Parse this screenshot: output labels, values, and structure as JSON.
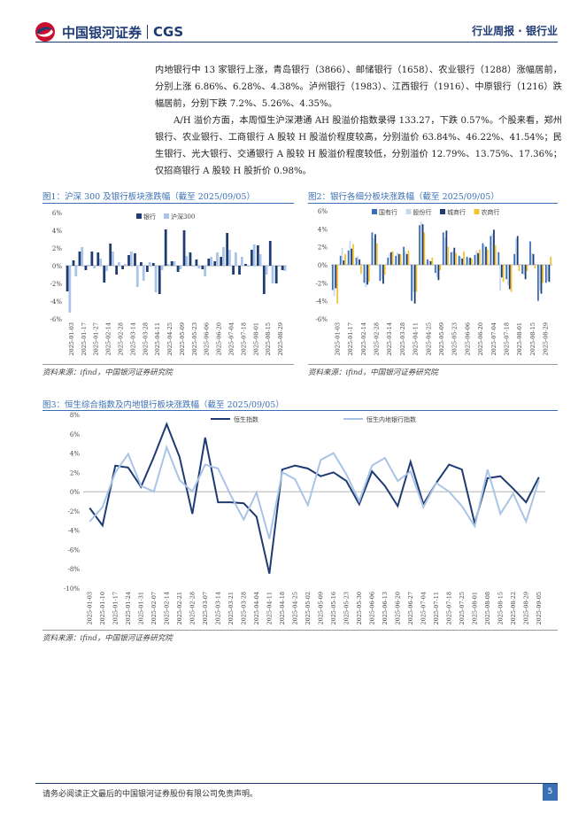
{
  "header": {
    "logo_text": "中国银河证券",
    "logo_cgs": "CGS",
    "right": "行业周报 · 银行业"
  },
  "body": {
    "para1": "内地银行中 13 家银行上涨，青岛银行（3866）、邮储银行（1658）、农业银行（1288）涨幅居前，分别上涨 6.86%、6.28%、4.38%。泸州银行（1983）、江西银行（1916）、中原银行（1216）跌幅居前，分别下跌 7.2%、5.26%、4.35%。",
    "para2": "A/H 溢价方面，本周恒生沪深港通 AH 股溢价指数录得 133.27，下跌 0.57%。个股来看，郑州银行、农业银行、工商银行 A 股较 H 股溢价程度较高，分别溢价 63.84%、46.22%、41.54%；民生银行、光大银行、交通银行 A 股较 H 股溢价程度较低，分别溢价 12.79%、13.75%、17.36%；仅招商银行 A 股较 H 股折价 0.98%。"
  },
  "figures": {
    "fig1_title": "图1：沪深 300 及银行板块涨跌幅（截至 2025/09/05）",
    "fig2_title": "图2：银行各细分板块涨跌幅（截至 2025/09/05）",
    "fig3_title": "图3：恒生综合指数及内地银行板块涨跌幅（截至 2025/09/05）",
    "source": "资料来源：ifind，中国银河证券研究院"
  },
  "footer": {
    "disclaimer": "请务必阅读正文最后的中国银河证券股份有限公司免责声明。",
    "page": "5"
  },
  "colors": {
    "navy": "#1f3b73",
    "light_blue": "#a9c4e6",
    "yellow": "#f2c230",
    "accent": "#3a6fb5"
  },
  "chart_data": [
    {
      "type": "bar",
      "title": "图1：沪深 300 及银行板块涨跌幅（截至 2025/09/05）",
      "ylim": [
        -6,
        6
      ],
      "ytick_labels": [
        "6%",
        "4%",
        "2%",
        "0%",
        "-2%",
        "-4%",
        "-6%"
      ],
      "x_tick_labels": [
        "2025-01-03",
        "2025-01-17",
        "2025-01-27",
        "2025-02-14",
        "2025-02-28",
        "2025-03-14",
        "2025-03-28",
        "2025-04-11",
        "2025-04-25",
        "2025-05-09",
        "2025-05-23",
        "2025-06-06",
        "2025-06-20",
        "2025-07-04",
        "2025-07-18",
        "2025-08-01",
        "2025-08-15",
        "2025-08-29"
      ],
      "legend_position": "top",
      "series": [
        {
          "name": "银行",
          "color": "#1f3b73",
          "values": [
            -2.9,
            0.6,
            1.6,
            -0.5,
            1.6,
            1.5,
            -1.9,
            2.5,
            -1.0,
            -0.4,
            1.2,
            1.4,
            0.4,
            -0.7,
            0.3,
            -3.2,
            4.1,
            0.5,
            -0.7,
            4.0,
            1.5,
            0.7,
            -0.4,
            0.8,
            0.5,
            1.0,
            3.7,
            -1.0,
            -1.0,
            0.2,
            1.8,
            2.3,
            -3.2,
            2.8,
            -2.0,
            -0.5
          ]
        },
        {
          "name": "沪深300",
          "color": "#a9c4e6",
          "values": [
            -5.3,
            -1.2,
            2.1,
            0.1,
            -0.3,
            0.8,
            -0.6,
            1.6,
            0.4,
            0.2,
            1.6,
            -2.4,
            -1.7,
            0.4,
            -3.0,
            -0.5,
            0.2,
            0.5,
            -0.4,
            1.1,
            -0.1,
            -0.3,
            -1.2,
            1.0,
            1.5,
            2.1,
            1.8,
            1.5,
            1.0,
            -0.1,
            2.4,
            1.3,
            -1.0,
            -2.0,
            -0.1,
            -0.6
          ]
        }
      ]
    },
    {
      "type": "bar",
      "title": "图2：银行各细分板块涨跌幅（截至 2025/09/05）",
      "ylim": [
        -6,
        6
      ],
      "ytick_labels": [
        "6%",
        "4%",
        "2%",
        "0%",
        "-2%",
        "-4%",
        "-6%"
      ],
      "x_tick_labels": [
        "2025-01-03",
        "2025-01-17",
        "2025-02-14",
        "2025-02-28",
        "2025-03-14",
        "2025-03-28",
        "2025-04-11",
        "2025-04-25",
        "2025-05-09",
        "2025-05-23",
        "2025-06-06",
        "2025-06-20",
        "2025-07-04",
        "2025-07-18",
        "2025-08-01",
        "2025-08-15",
        "2025-08-29"
      ],
      "legend_position": "top",
      "series": [
        {
          "name": "国有行",
          "color": "#3a6fb5",
          "values": [
            -2.8,
            1.0,
            1.6,
            0.8,
            -2.0,
            3.6,
            -1.8,
            0.8,
            1.0,
            2.0,
            -4.0,
            4.4,
            0.6,
            -0.9,
            3.6,
            1.4,
            1.0,
            0.9,
            1.1,
            2.4,
            3.2,
            1.4,
            -1.6,
            1.2,
            -1.0,
            2.6,
            -4.0,
            -2.0
          ]
        },
        {
          "name": "股份行",
          "color": "#c9d8ec",
          "values": [
            -3.5,
            1.9,
            2.7,
            1.0,
            -2.5,
            3.0,
            -1.6,
            1.3,
            1.4,
            1.5,
            -3.0,
            4.8,
            0.5,
            -1.4,
            3.0,
            1.5,
            0.9,
            0.7,
            1.6,
            2.2,
            3.5,
            -2.9,
            -2.3,
            2.9,
            -1.1,
            1.3,
            -2.8,
            -1.8
          ]
        },
        {
          "name": "城商行",
          "color": "#1f3b73",
          "values": [
            -2.6,
            0.5,
            1.8,
            0.6,
            -2.2,
            3.4,
            -2.1,
            1.4,
            1.2,
            1.2,
            -4.3,
            4.5,
            0.4,
            -1.7,
            3.8,
            1.9,
            0.7,
            0.8,
            1.3,
            2.0,
            3.9,
            -1.4,
            -2.7,
            3.2,
            -1.6,
            1.2,
            -3.2,
            -1.9
          ]
        },
        {
          "name": "农商行",
          "color": "#f2c230",
          "values": [
            -4.3,
            1.2,
            2.3,
            -1.0,
            -1.9,
            2.4,
            -1.1,
            1.5,
            1.2,
            1.6,
            -3.0,
            3.6,
            0.8,
            -0.6,
            2.0,
            1.3,
            1.5,
            0.7,
            1.7,
            1.7,
            2.2,
            -1.9,
            -3.0,
            -0.7,
            -0.7,
            -0.4,
            -2.0,
            0.9
          ]
        }
      ]
    },
    {
      "type": "line",
      "title": "图3：恒生综合指数及内地银行板块涨跌幅（截至 2025/09/05）",
      "ylim": [
        -10,
        8
      ],
      "ytick_labels": [
        "8%",
        "6%",
        "4%",
        "2%",
        "0%",
        "-2%",
        "-4%",
        "-6%",
        "-8%",
        "-10%"
      ],
      "x": [
        "2025-01-03",
        "2025-01-10",
        "2025-01-17",
        "2025-01-24",
        "2025-01-31",
        "2025-02-07",
        "2025-02-14",
        "2025-02-21",
        "2025-02-28",
        "2025-03-07",
        "2025-03-14",
        "2025-03-21",
        "2025-03-28",
        "2025-04-04",
        "2025-04-11",
        "2025-04-18",
        "2025-04-25",
        "2025-05-02",
        "2025-05-09",
        "2025-05-16",
        "2025-05-23",
        "2025-05-30",
        "2025-06-06",
        "2025-06-13",
        "2025-06-20",
        "2025-06-27",
        "2025-07-04",
        "2025-07-11",
        "2025-07-18",
        "2025-07-25",
        "2025-08-01",
        "2025-08-08",
        "2025-08-15",
        "2025-08-22",
        "2025-08-29",
        "2025-09-05"
      ],
      "legend_position": "top",
      "series": [
        {
          "name": "恒生指数",
          "color": "#1f3b73",
          "values": [
            -1.7,
            -3.5,
            2.7,
            2.5,
            0.5,
            3.6,
            7.0,
            3.6,
            -2.3,
            5.6,
            -1.1,
            -1.1,
            -1.2,
            -2.6,
            -8.5,
            2.3,
            2.7,
            2.4,
            1.6,
            2.0,
            1.1,
            -1.3,
            2.1,
            0.6,
            -1.5,
            3.1,
            -1.3,
            0.9,
            2.8,
            2.3,
            -3.3,
            1.4,
            1.6,
            0.3,
            -1.1,
            1.5
          ]
        },
        {
          "name": "恒生内地银行指数",
          "color": "#a9c4e6",
          "values": [
            -3.1,
            -1.6,
            2.0,
            3.9,
            0.6,
            0.0,
            4.6,
            1.2,
            0.0,
            2.8,
            2.4,
            -0.4,
            -2.9,
            -0.1,
            -4.9,
            2.0,
            1.3,
            -1.4,
            3.3,
            4.0,
            1.8,
            -1.0,
            2.7,
            3.5,
            1.1,
            2.1,
            -1.6,
            0.9,
            0.0,
            -1.5,
            -3.6,
            2.3,
            -2.3,
            -0.2,
            -3.1,
            1.2
          ]
        }
      ]
    }
  ]
}
